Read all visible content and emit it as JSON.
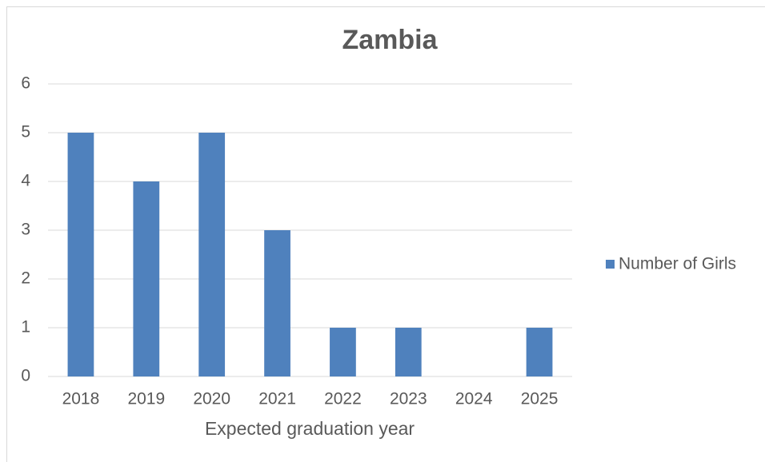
{
  "chart_data": {
    "type": "bar",
    "title": "Zambia",
    "x_label": "Expected graduation year",
    "categories": [
      "2018",
      "2019",
      "2020",
      "2021",
      "2022",
      "2023",
      "2024",
      "2025"
    ],
    "series": [
      {
        "name": "Number of Girls",
        "color": "#4f81bd",
        "values": [
          5,
          4,
          5,
          3,
          1,
          1,
          0,
          1
        ]
      }
    ],
    "ylim": [
      0,
      6
    ],
    "yticks": [
      0,
      1,
      2,
      3,
      4,
      5,
      6
    ],
    "grid": true,
    "legend": "right"
  }
}
